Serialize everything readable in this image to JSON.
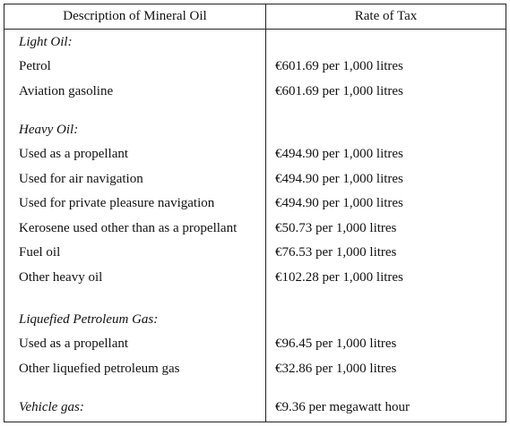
{
  "table": {
    "headers": {
      "description": "Description of Mineral Oil",
      "rate": "Rate of Tax"
    },
    "sections": [
      {
        "heading": "Light Oil:",
        "rows": [
          {
            "description": "Petrol",
            "rate": "€601.69 per 1,000 litres"
          },
          {
            "description": "Aviation gasoline",
            "rate": "€601.69 per 1,000 litres"
          }
        ]
      },
      {
        "heading": "Heavy Oil:",
        "rows": [
          {
            "description": "Used as a propellant",
            "rate": "€494.90 per 1,000 litres"
          },
          {
            "description": "Used for air navigation",
            "rate": "€494.90 per 1,000 litres"
          },
          {
            "description": "Used for private pleasure navigation",
            "rate": "€494.90 per 1,000 litres"
          },
          {
            "description": "Kerosene used other than as a propellant",
            "rate": "€50.73 per 1,000 litres"
          },
          {
            "description": "Fuel oil",
            "rate": "€76.53 per 1,000 litres"
          },
          {
            "description": "Other heavy oil",
            "rate": "€102.28 per 1,000 litres"
          }
        ]
      },
      {
        "heading": "Liquefied Petroleum Gas:",
        "rows": [
          {
            "description": "Used as a propellant",
            "rate": "€96.45 per 1,000 litres"
          },
          {
            "description": "Other liquefied petroleum gas",
            "rate": "€32.86 per 1,000 litres"
          }
        ]
      },
      {
        "heading": "Vehicle gas:",
        "heading_rate": "€9.36 per megawatt hour",
        "rows": []
      }
    ]
  }
}
